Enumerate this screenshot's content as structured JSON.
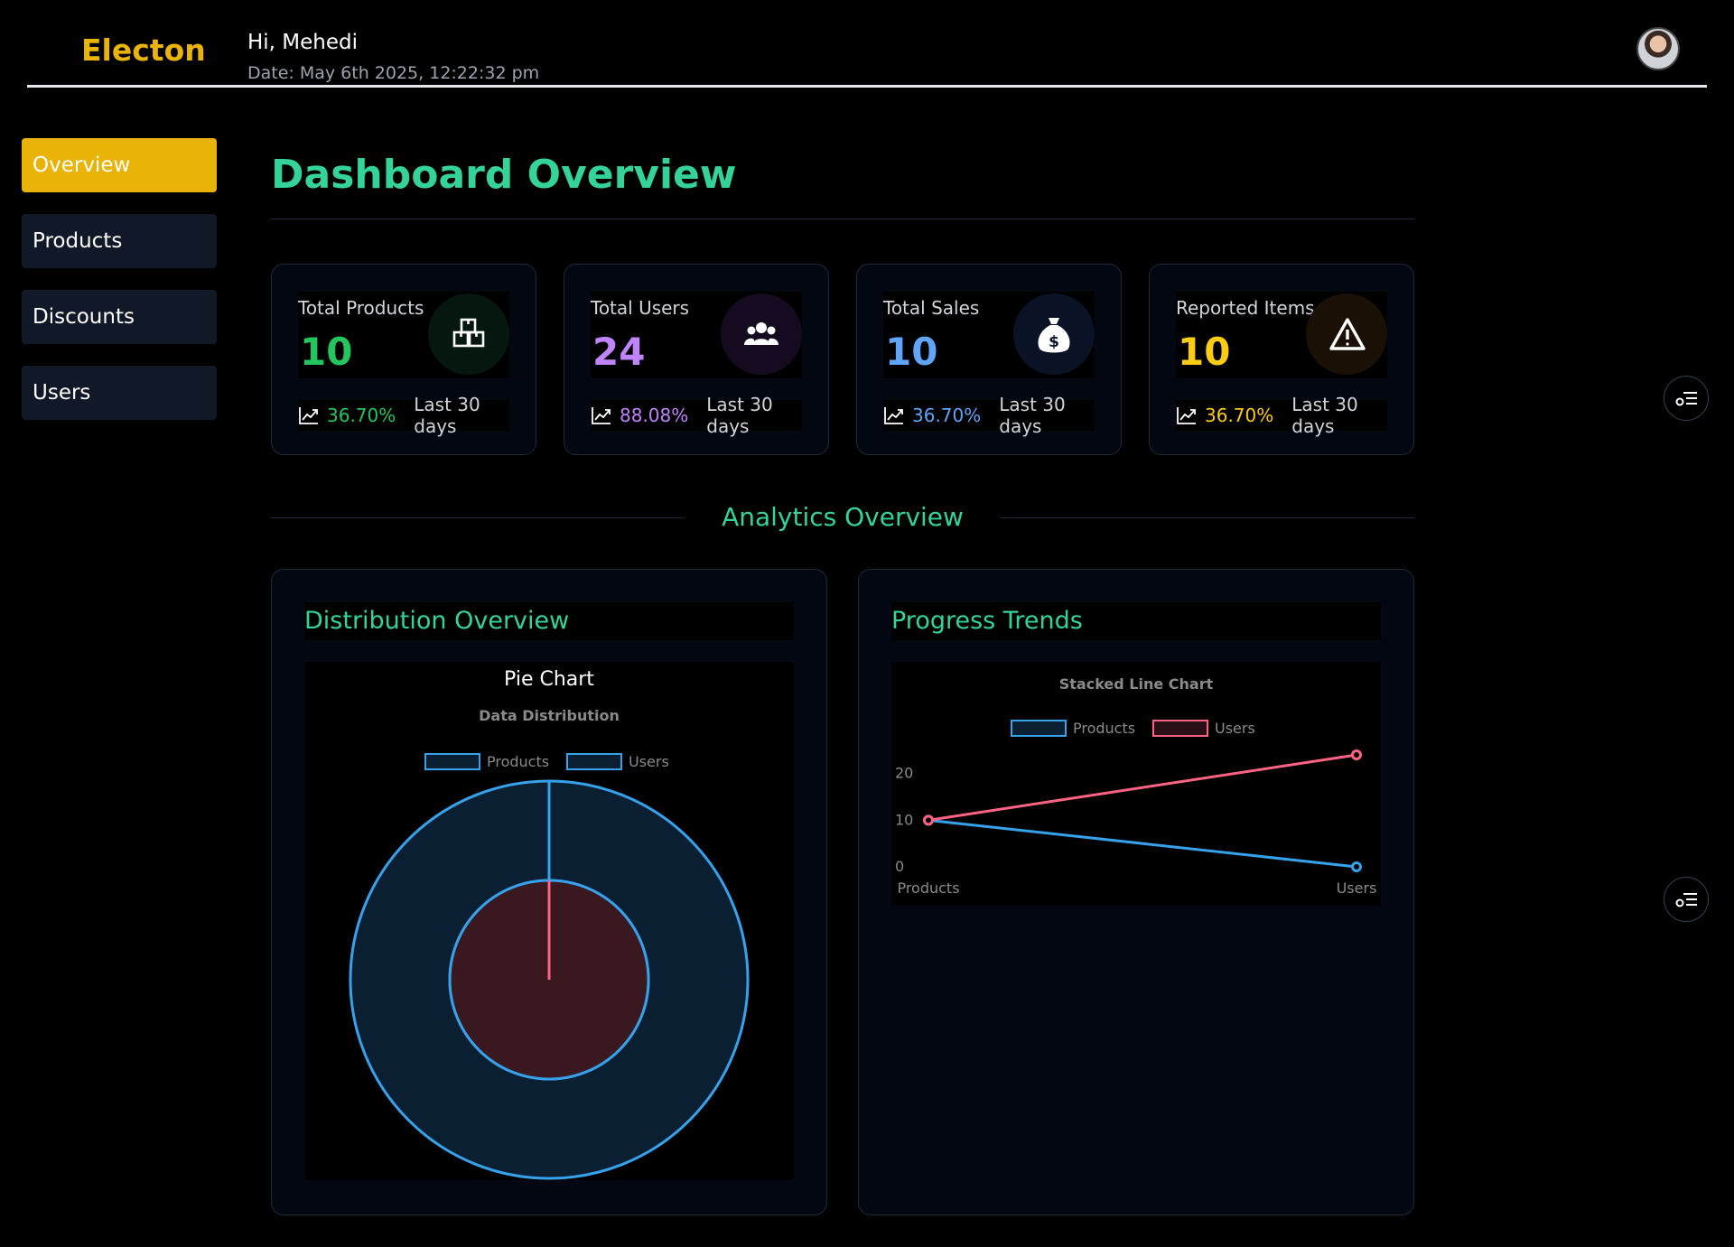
{
  "header": {
    "brand": "Electon",
    "greeting": "Hi, Mehedi",
    "date": "Date: May 6th 2025, 12:22:32 pm"
  },
  "sidebar": {
    "items": [
      {
        "label": "Overview",
        "active": true
      },
      {
        "label": "Products",
        "active": false
      },
      {
        "label": "Discounts",
        "active": false
      },
      {
        "label": "Users",
        "active": false
      }
    ]
  },
  "main": {
    "title": "Dashboard Overview",
    "stats": [
      {
        "label": "Total Products",
        "value": "10",
        "change": "36.70%",
        "period": "Last 30 days",
        "color": "#22c55e",
        "icon": "box-icon"
      },
      {
        "label": "Total Users",
        "value": "24",
        "change": "88.08%",
        "period": "Last 30 days",
        "color": "#c084fc",
        "icon": "users-icon"
      },
      {
        "label": "Total Sales",
        "value": "10",
        "change": "36.70%",
        "period": "Last 30 days",
        "color": "#60a5fa",
        "icon": "money-bag-icon"
      },
      {
        "label": "Reported Items",
        "value": "10",
        "change": "36.70%",
        "period": "Last 30 days",
        "color": "#facc15",
        "icon": "warning-icon"
      }
    ],
    "analytics_title": "Analytics Overview",
    "panels": [
      {
        "title": "Distribution Overview",
        "chart_heading": "Pie Chart"
      },
      {
        "title": "Progress Trends"
      }
    ]
  },
  "chart_data": [
    {
      "type": "pie",
      "title": "Data Distribution",
      "legend": [
        "Products",
        "Users"
      ],
      "series": [
        {
          "name": "Products",
          "values": [
            10,
            0
          ],
          "color": "#36a2eb"
        },
        {
          "name": "Users",
          "values": [
            0,
            24
          ],
          "color": "#ff6384"
        }
      ],
      "categories": [
        "Products",
        "Users"
      ],
      "legend_position": "top"
    },
    {
      "type": "line",
      "title": "Stacked Line Chart",
      "categories": [
        "Products",
        "Users"
      ],
      "series": [
        {
          "name": "Products",
          "values": [
            10,
            0
          ],
          "color": "#36a2eb"
        },
        {
          "name": "Users",
          "values": [
            10,
            24
          ],
          "color": "#ff6384"
        }
      ],
      "yticks": [
        0,
        10,
        20
      ],
      "ylim": [
        0,
        24
      ],
      "legend_position": "top",
      "grid": false
    }
  ]
}
